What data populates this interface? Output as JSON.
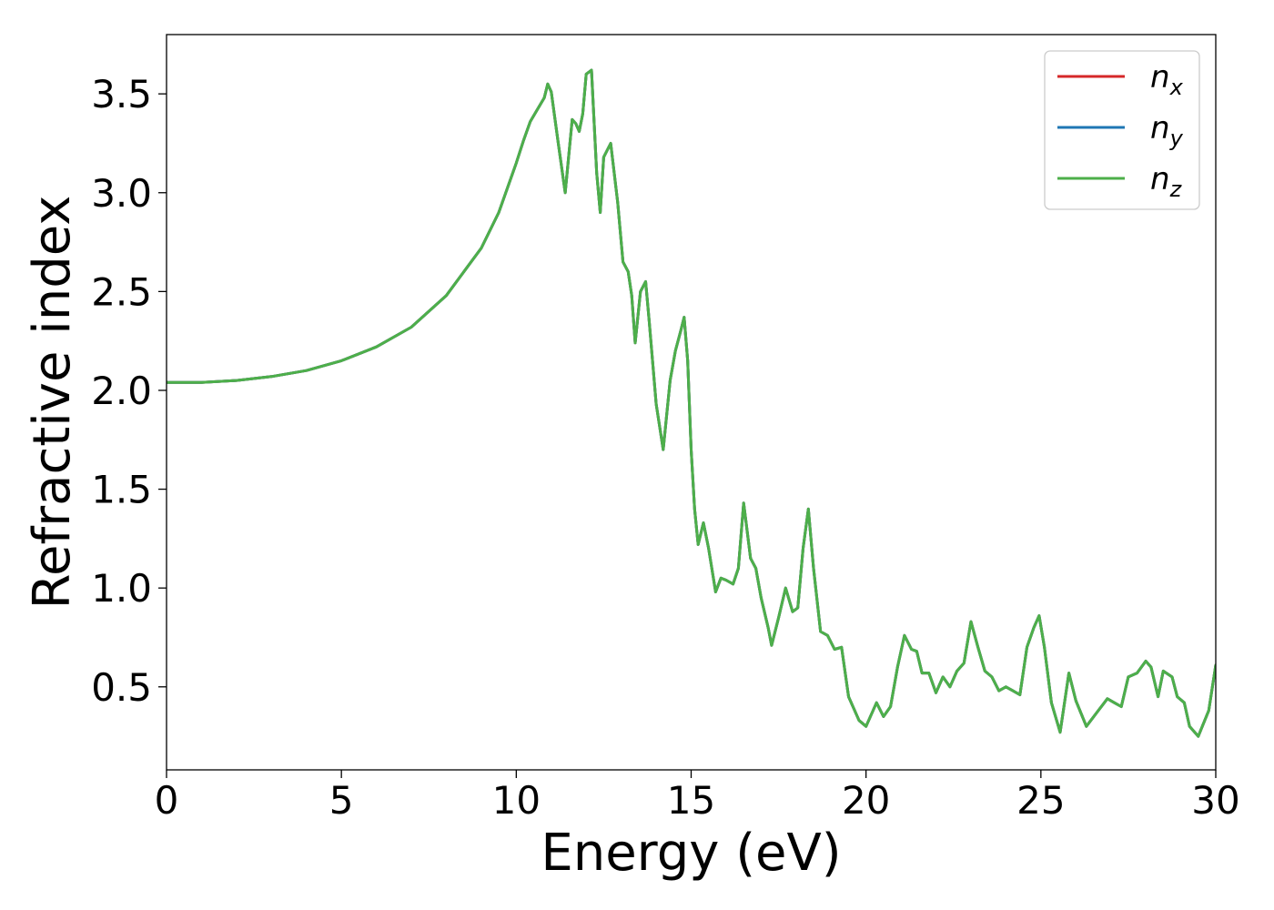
{
  "chart_data": {
    "type": "line",
    "xlabel": "Energy (eV)",
    "ylabel": "Refractive index",
    "xlim": [
      0,
      30
    ],
    "ylim": [
      0.08,
      3.8
    ],
    "x_ticks": [
      0,
      5,
      10,
      15,
      20,
      25,
      30
    ],
    "x_tick_labels": [
      "0",
      "5",
      "10",
      "15",
      "20",
      "25",
      "30"
    ],
    "y_ticks": [
      0.5,
      1.0,
      1.5,
      2.0,
      2.5,
      3.0,
      3.5
    ],
    "y_tick_labels": [
      "0.5",
      "1.0",
      "1.5",
      "2.0",
      "2.5",
      "3.0",
      "3.5"
    ],
    "grid": false,
    "legend_position": "top-right",
    "colors": {
      "n_x": "#d62728",
      "n_y": "#1f77b4",
      "n_z": "#4daf4a"
    },
    "legend": [
      {
        "base": "n",
        "sub": "x",
        "color": "#d62728"
      },
      {
        "base": "n",
        "sub": "y",
        "color": "#1f77b4"
      },
      {
        "base": "n",
        "sub": "z",
        "color": "#4daf4a"
      }
    ],
    "x": [
      0,
      1,
      2,
      3,
      4,
      5,
      6,
      7,
      8,
      9,
      9.5,
      10,
      10.2,
      10.4,
      10.6,
      10.8,
      10.9,
      11.0,
      11.2,
      11.4,
      11.6,
      11.7,
      11.8,
      11.9,
      12.0,
      12.15,
      12.3,
      12.4,
      12.5,
      12.7,
      12.9,
      13.05,
      13.2,
      13.3,
      13.4,
      13.55,
      13.7,
      13.8,
      14.0,
      14.2,
      14.4,
      14.55,
      14.7,
      14.8,
      14.9,
      15.0,
      15.1,
      15.2,
      15.35,
      15.5,
      15.7,
      15.85,
      16.0,
      16.2,
      16.35,
      16.5,
      16.7,
      16.85,
      17.0,
      17.2,
      17.3,
      17.5,
      17.7,
      17.9,
      18.05,
      18.2,
      18.35,
      18.5,
      18.7,
      18.9,
      19.1,
      19.3,
      19.5,
      19.8,
      20.0,
      20.2,
      20.3,
      20.5,
      20.7,
      20.9,
      21.1,
      21.3,
      21.45,
      21.6,
      21.8,
      22.0,
      22.2,
      22.4,
      22.6,
      22.8,
      23.0,
      23.2,
      23.4,
      23.6,
      23.8,
      24.0,
      24.2,
      24.4,
      24.6,
      24.8,
      24.95,
      25.1,
      25.3,
      25.55,
      25.8,
      26.0,
      26.3,
      26.6,
      26.9,
      27.1,
      27.3,
      27.5,
      27.75,
      28.0,
      28.15,
      28.35,
      28.5,
      28.75,
      28.9,
      29.1,
      29.25,
      29.5,
      29.8,
      30.0
    ],
    "series": [
      {
        "name": "n_x",
        "values": [
          2.04,
          2.04,
          2.05,
          2.07,
          2.1,
          2.15,
          2.22,
          2.32,
          2.48,
          2.72,
          2.9,
          3.15,
          3.26,
          3.36,
          3.42,
          3.48,
          3.55,
          3.51,
          3.25,
          3.0,
          3.37,
          3.35,
          3.31,
          3.4,
          3.6,
          3.62,
          3.1,
          2.9,
          3.18,
          3.25,
          2.95,
          2.65,
          2.6,
          2.48,
          2.24,
          2.5,
          2.55,
          2.35,
          1.93,
          1.7,
          2.05,
          2.2,
          2.3,
          2.37,
          2.15,
          1.7,
          1.4,
          1.22,
          1.33,
          1.2,
          0.98,
          1.05,
          1.04,
          1.02,
          1.1,
          1.43,
          1.15,
          1.1,
          0.95,
          0.8,
          0.71,
          0.85,
          1.0,
          0.88,
          0.9,
          1.2,
          1.4,
          1.1,
          0.78,
          0.76,
          0.69,
          0.7,
          0.45,
          0.33,
          0.3,
          0.38,
          0.42,
          0.35,
          0.4,
          0.6,
          0.76,
          0.69,
          0.68,
          0.57,
          0.57,
          0.47,
          0.55,
          0.5,
          0.58,
          0.62,
          0.83,
          0.7,
          0.58,
          0.55,
          0.48,
          0.5,
          0.48,
          0.46,
          0.7,
          0.8,
          0.86,
          0.7,
          0.42,
          0.27,
          0.57,
          0.43,
          0.3,
          0.37,
          0.44,
          0.42,
          0.4,
          0.55,
          0.57,
          0.63,
          0.6,
          0.45,
          0.58,
          0.55,
          0.45,
          0.42,
          0.3,
          0.25,
          0.38,
          0.61
        ]
      },
      {
        "name": "n_y",
        "values": [
          2.04,
          2.04,
          2.05,
          2.07,
          2.1,
          2.15,
          2.22,
          2.32,
          2.48,
          2.72,
          2.9,
          3.15,
          3.26,
          3.36,
          3.42,
          3.48,
          3.55,
          3.51,
          3.25,
          3.0,
          3.37,
          3.35,
          3.31,
          3.4,
          3.6,
          3.62,
          3.1,
          2.9,
          3.18,
          3.25,
          2.95,
          2.65,
          2.6,
          2.48,
          2.24,
          2.5,
          2.55,
          2.35,
          1.93,
          1.7,
          2.05,
          2.2,
          2.3,
          2.37,
          2.15,
          1.7,
          1.4,
          1.22,
          1.33,
          1.2,
          0.98,
          1.05,
          1.04,
          1.02,
          1.1,
          1.43,
          1.15,
          1.1,
          0.95,
          0.8,
          0.71,
          0.85,
          1.0,
          0.88,
          0.9,
          1.2,
          1.4,
          1.1,
          0.78,
          0.76,
          0.69,
          0.7,
          0.45,
          0.33,
          0.3,
          0.38,
          0.42,
          0.35,
          0.4,
          0.6,
          0.76,
          0.69,
          0.68,
          0.57,
          0.57,
          0.47,
          0.55,
          0.5,
          0.58,
          0.62,
          0.83,
          0.7,
          0.58,
          0.55,
          0.48,
          0.5,
          0.48,
          0.46,
          0.7,
          0.8,
          0.86,
          0.7,
          0.42,
          0.27,
          0.57,
          0.43,
          0.3,
          0.37,
          0.44,
          0.42,
          0.4,
          0.55,
          0.57,
          0.63,
          0.6,
          0.45,
          0.58,
          0.55,
          0.45,
          0.42,
          0.3,
          0.25,
          0.38,
          0.61
        ]
      },
      {
        "name": "n_z",
        "values": [
          2.04,
          2.04,
          2.05,
          2.07,
          2.1,
          2.15,
          2.22,
          2.32,
          2.48,
          2.72,
          2.9,
          3.15,
          3.26,
          3.36,
          3.42,
          3.48,
          3.55,
          3.51,
          3.25,
          3.0,
          3.37,
          3.35,
          3.31,
          3.4,
          3.6,
          3.62,
          3.1,
          2.9,
          3.18,
          3.25,
          2.95,
          2.65,
          2.6,
          2.48,
          2.24,
          2.5,
          2.55,
          2.35,
          1.93,
          1.7,
          2.05,
          2.2,
          2.3,
          2.37,
          2.15,
          1.7,
          1.4,
          1.22,
          1.33,
          1.2,
          0.98,
          1.05,
          1.04,
          1.02,
          1.1,
          1.43,
          1.15,
          1.1,
          0.95,
          0.8,
          0.71,
          0.85,
          1.0,
          0.88,
          0.9,
          1.2,
          1.4,
          1.1,
          0.78,
          0.76,
          0.69,
          0.7,
          0.45,
          0.33,
          0.3,
          0.38,
          0.42,
          0.35,
          0.4,
          0.6,
          0.76,
          0.69,
          0.68,
          0.57,
          0.57,
          0.47,
          0.55,
          0.5,
          0.58,
          0.62,
          0.83,
          0.7,
          0.58,
          0.55,
          0.48,
          0.5,
          0.48,
          0.46,
          0.7,
          0.8,
          0.86,
          0.7,
          0.42,
          0.27,
          0.57,
          0.43,
          0.3,
          0.37,
          0.44,
          0.42,
          0.4,
          0.55,
          0.57,
          0.63,
          0.6,
          0.45,
          0.58,
          0.55,
          0.45,
          0.42,
          0.3,
          0.25,
          0.38,
          0.61
        ]
      }
    ]
  }
}
